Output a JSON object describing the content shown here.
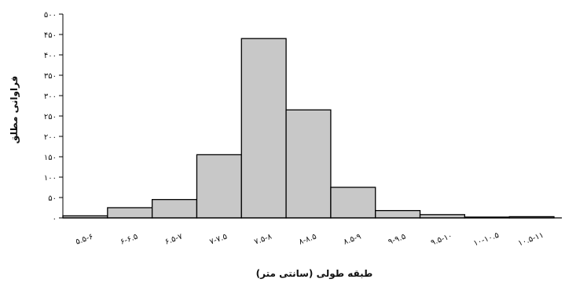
{
  "chart_data": {
    "type": "bar",
    "subtype": "histogram",
    "categories": [
      "۵.۵-۶",
      "۶-۶.۵",
      "۶.۵-۷",
      "۷-۷.۵",
      "۷.۵-۸",
      "۸-۸.۵",
      "۸.۵-۹",
      "۹-۹.۵",
      "۹.۵-۱۰",
      "۱۰-۱۰.۵",
      "۱۰.۵-۱۱"
    ],
    "values": [
      5,
      25,
      45,
      155,
      440,
      265,
      75,
      18,
      8,
      2,
      3
    ],
    "ylim": [
      0,
      500
    ],
    "yticks": [
      0,
      50,
      100,
      150,
      200,
      250,
      300,
      350,
      400,
      450,
      500
    ],
    "ytick_labels": [
      "۰",
      "۵۰",
      "۱۰۰",
      "۱۵۰",
      "۲۰۰",
      "۲۵۰",
      "۳۰۰",
      "۳۵۰",
      "۴۰۰",
      "۴۵۰",
      "۵۰۰"
    ],
    "xlabel": "طبقه طولی (سانتی متر)",
    "ylabel": "فراوانی مطلق",
    "title": "",
    "grid": false,
    "bar_color": "#c8c8c8",
    "bar_edge_color": "#000000"
  }
}
